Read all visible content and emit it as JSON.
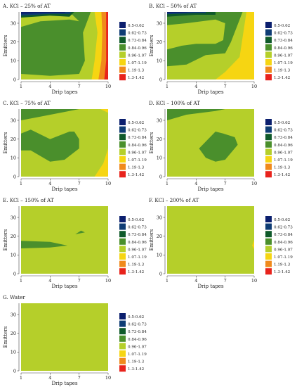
{
  "legend_items": [
    {
      "label": "0.5-0.62",
      "color": "#0b1f6e"
    },
    {
      "label": "0.62-0.73",
      "color": "#0e3c74"
    },
    {
      "label": "0.73-0.84",
      "color": "#0f5a2a"
    },
    {
      "label": "0.84-0.96",
      "color": "#4a8f2c"
    },
    {
      "label": "0.96-1.07",
      "color": "#b5cf2a"
    },
    {
      "label": "1.07-1.19",
      "color": "#f6d512"
    },
    {
      "label": "1.19-1.3",
      "color": "#f08a1c"
    },
    {
      "label": "1.3-1.42",
      "color": "#e8231c"
    }
  ],
  "chart_data": [
    {
      "type": "contour",
      "title": "A.  KCl – 25% of AT",
      "xlabel": "Drip tapes",
      "ylabel": "Emitters",
      "x_ticks": [
        1,
        4,
        7,
        10
      ],
      "y_ticks": [
        0,
        10,
        20,
        30
      ],
      "xlim": [
        1,
        10
      ],
      "ylim": [
        0,
        36
      ],
      "regions": [
        {
          "class": "0.96-1.07",
          "points": [
            [
              1,
              0
            ],
            [
              10,
              0
            ],
            [
              10,
              36
            ],
            [
              1,
              36
            ]
          ]
        },
        {
          "class": "0.84-0.96",
          "points": [
            [
              1,
              3
            ],
            [
              4,
              2
            ],
            [
              7,
              3
            ],
            [
              7.6,
              10
            ],
            [
              7.4,
              25
            ],
            [
              8.2,
              36
            ],
            [
              1,
              36
            ]
          ]
        },
        {
          "class": "0.96-1.07",
          "points": [
            [
              1,
              28
            ],
            [
              3,
              31
            ],
            [
              6,
              32
            ],
            [
              7,
              31
            ],
            [
              6,
              36
            ],
            [
              1,
              36
            ]
          ]
        },
        {
          "class": "0.73-0.84",
          "points": [
            [
              1,
              33
            ],
            [
              4,
              34
            ],
            [
              6,
              33.5
            ],
            [
              6.5,
              36
            ],
            [
              1,
              36
            ]
          ]
        },
        {
          "class": "0.62-0.73",
          "points": [
            [
              1,
              34
            ],
            [
              4,
              35
            ],
            [
              6,
              35
            ],
            [
              6.2,
              36
            ],
            [
              1,
              36
            ]
          ]
        },
        {
          "class": "0.5-0.62",
          "points": [
            [
              1,
              35
            ],
            [
              4,
              35.6
            ],
            [
              5.5,
              35.5
            ],
            [
              5.6,
              36
            ],
            [
              1,
              36
            ]
          ]
        },
        {
          "class": "1.07-1.19",
          "points": [
            [
              8.3,
              0
            ],
            [
              10,
              0
            ],
            [
              10,
              36
            ],
            [
              8.6,
              36
            ],
            [
              8.9,
              25
            ],
            [
              8.6,
              10
            ]
          ]
        },
        {
          "class": "1.19-1.3",
          "points": [
            [
              9,
              0
            ],
            [
              10,
              0
            ],
            [
              10,
              36
            ],
            [
              9.3,
              36
            ],
            [
              9.4,
              25
            ],
            [
              9.3,
              10
            ]
          ]
        },
        {
          "class": "1.3-1.42",
          "points": [
            [
              9.6,
              0
            ],
            [
              10,
              0
            ],
            [
              10,
              36
            ],
            [
              9.8,
              36
            ],
            [
              9.8,
              22
            ],
            [
              9.8,
              10
            ]
          ]
        }
      ]
    },
    {
      "type": "contour",
      "title": "B.  KCl – 50% of AT",
      "xlabel": "Drip tapes",
      "ylabel": "Emitters",
      "x_ticks": [
        1,
        4,
        7,
        10
      ],
      "y_ticks": [
        0,
        10,
        20,
        30
      ],
      "xlim": [
        1,
        10
      ],
      "ylim": [
        0,
        36
      ],
      "regions": [
        {
          "class": "0.96-1.07",
          "points": [
            [
              1,
              0
            ],
            [
              10,
              0
            ],
            [
              10,
              36
            ],
            [
              1,
              36
            ]
          ]
        },
        {
          "class": "1.07-1.19",
          "points": [
            [
              6,
              0
            ],
            [
              10,
              0
            ],
            [
              10,
              36
            ],
            [
              9.2,
              36
            ],
            [
              8.5,
              12
            ],
            [
              7,
              4
            ]
          ]
        },
        {
          "class": "0.84-0.96",
          "points": [
            [
              1,
              7
            ],
            [
              3,
              8
            ],
            [
              5,
              13
            ],
            [
              7,
              14
            ],
            [
              7.6,
              20
            ],
            [
              8.8,
              36
            ],
            [
              1,
              36
            ]
          ]
        },
        {
          "class": "0.96-1.07",
          "points": [
            [
              1,
              16
            ],
            [
              2.5,
              18
            ],
            [
              4,
              19
            ],
            [
              6,
              19
            ],
            [
              6.8,
              21
            ],
            [
              7,
              30
            ],
            [
              6,
              32
            ],
            [
              3,
              30
            ],
            [
              1,
              29
            ]
          ]
        },
        {
          "class": "0.84-0.96",
          "points": [
            [
              1,
              31
            ],
            [
              3,
              33
            ],
            [
              6,
              33
            ],
            [
              7,
              34
            ],
            [
              7,
              36
            ],
            [
              1,
              36
            ]
          ]
        },
        {
          "class": "0.73-0.84",
          "points": [
            [
              1,
              33.5
            ],
            [
              4,
              34.5
            ],
            [
              6,
              34.5
            ],
            [
              6,
              36
            ],
            [
              1,
              36
            ]
          ]
        },
        {
          "class": "0.62-0.73",
          "points": [
            [
              1,
              34.8
            ],
            [
              4,
              35.4
            ],
            [
              5,
              35.4
            ],
            [
              5,
              36
            ],
            [
              1,
              36
            ]
          ]
        },
        {
          "class": "0.5-0.62",
          "points": [
            [
              1,
              35.5
            ],
            [
              3,
              35.8
            ],
            [
              3.2,
              36
            ],
            [
              1,
              36
            ]
          ]
        }
      ]
    },
    {
      "type": "contour",
      "title": "C.  KCl – 75% of AT",
      "xlabel": "Drip tapes",
      "ylabel": "Emitters",
      "x_ticks": [
        1,
        4,
        7,
        10
      ],
      "y_ticks": [
        0,
        10,
        20,
        30
      ],
      "xlim": [
        1,
        10
      ],
      "ylim": [
        0,
        36
      ],
      "regions": [
        {
          "class": "0.96-1.07",
          "points": [
            [
              1,
              0
            ],
            [
              10,
              0
            ],
            [
              10,
              36
            ],
            [
              1,
              36
            ]
          ]
        },
        {
          "class": "0.84-0.96",
          "points": [
            [
              1,
              30
            ],
            [
              3,
              32
            ],
            [
              6,
              35
            ],
            [
              7,
              36
            ],
            [
              1,
              36
            ]
          ]
        },
        {
          "class": "0.84-0.96",
          "points": [
            [
              2,
              25
            ],
            [
              4,
              20
            ],
            [
              6,
              24
            ],
            [
              6.5,
              24
            ],
            [
              7,
              20
            ],
            [
              7,
              15
            ],
            [
              5.5,
              9
            ],
            [
              4,
              8
            ],
            [
              2,
              14
            ],
            [
              1,
              14
            ],
            [
              1,
              23
            ]
          ]
        },
        {
          "class": "1.07-1.19",
          "points": [
            [
              9.2,
              36
            ],
            [
              10,
              36
            ],
            [
              10,
              34
            ]
          ]
        },
        {
          "class": "1.07-1.19",
          "points": [
            [
              8.6,
              0
            ],
            [
              10,
              0
            ],
            [
              10,
              15
            ],
            [
              9.5,
              7
            ]
          ]
        }
      ]
    },
    {
      "type": "contour",
      "title": "D.  KCl – 100% of AT",
      "xlabel": "Drip tapes",
      "ylabel": "Emitters",
      "x_ticks": [
        1,
        4,
        7,
        10
      ],
      "y_ticks": [
        0,
        10,
        20,
        30
      ],
      "xlim": [
        1,
        10
      ],
      "ylim": [
        0,
        36
      ],
      "regions": [
        {
          "class": "0.96-1.07",
          "points": [
            [
              1,
              0
            ],
            [
              10,
              0
            ],
            [
              10,
              36
            ],
            [
              1,
              36
            ]
          ]
        },
        {
          "class": "0.84-0.96",
          "points": [
            [
              1,
              30
            ],
            [
              3,
              33
            ],
            [
              6,
              35
            ],
            [
              7,
              36
            ],
            [
              1,
              36
            ]
          ]
        },
        {
          "class": "0.84-0.96",
          "points": [
            [
              4.3,
              15
            ],
            [
              6,
              24
            ],
            [
              6.8,
              23
            ],
            [
              8,
              21
            ],
            [
              8.3,
              17
            ],
            [
              7,
              9
            ],
            [
              6,
              8
            ],
            [
              5,
              10
            ]
          ]
        }
      ]
    },
    {
      "type": "contour",
      "title": "E.  KCl – 150% of AT",
      "xlabel": "Drip tapes",
      "ylabel": "Emitters",
      "x_ticks": [
        1,
        4,
        7,
        10
      ],
      "y_ticks": [
        0,
        10,
        20,
        30
      ],
      "xlim": [
        1,
        10
      ],
      "ylim": [
        0,
        36
      ],
      "regions": [
        {
          "class": "0.96-1.07",
          "points": [
            [
              1,
              0
            ],
            [
              10,
              0
            ],
            [
              10,
              36
            ],
            [
              1,
              36
            ]
          ]
        },
        {
          "class": "0.84-0.96",
          "points": [
            [
              1,
              13.5
            ],
            [
              4,
              14
            ],
            [
              5.8,
              15
            ],
            [
              4,
              17
            ],
            [
              1,
              17.5
            ]
          ]
        },
        {
          "class": "0.84-0.96",
          "points": [
            [
              6.6,
              21
            ],
            [
              7.2,
              23
            ],
            [
              7.6,
              22
            ]
          ]
        }
      ]
    },
    {
      "type": "contour",
      "title": "F.  KCl – 200% of AT",
      "xlabel": "Drip tapes",
      "ylabel": "Emitters",
      "x_ticks": [
        1,
        4,
        7,
        10
      ],
      "y_ticks": [
        0,
        10,
        20,
        30
      ],
      "xlim": [
        1,
        10
      ],
      "ylim": [
        0,
        36
      ],
      "regions": [
        {
          "class": "0.96-1.07",
          "points": [
            [
              1,
              0
            ],
            [
              10,
              0
            ],
            [
              10,
              36
            ],
            [
              1,
              36
            ]
          ]
        },
        {
          "class": "1.07-1.19",
          "points": [
            [
              9.8,
              15
            ],
            [
              10,
              13
            ],
            [
              10,
              18
            ]
          ]
        }
      ]
    },
    {
      "type": "contour",
      "title": "G.  Water",
      "xlabel": "Drip tapes",
      "ylabel": "Emitters",
      "x_ticks": [
        1,
        4,
        7,
        10
      ],
      "y_ticks": [
        0,
        10,
        20,
        30
      ],
      "xlim": [
        1,
        10
      ],
      "ylim": [
        0,
        36
      ],
      "regions": [
        {
          "class": "0.96-1.07",
          "points": [
            [
              1,
              0
            ],
            [
              10,
              0
            ],
            [
              10,
              36
            ],
            [
              1,
              36
            ]
          ]
        }
      ]
    }
  ]
}
